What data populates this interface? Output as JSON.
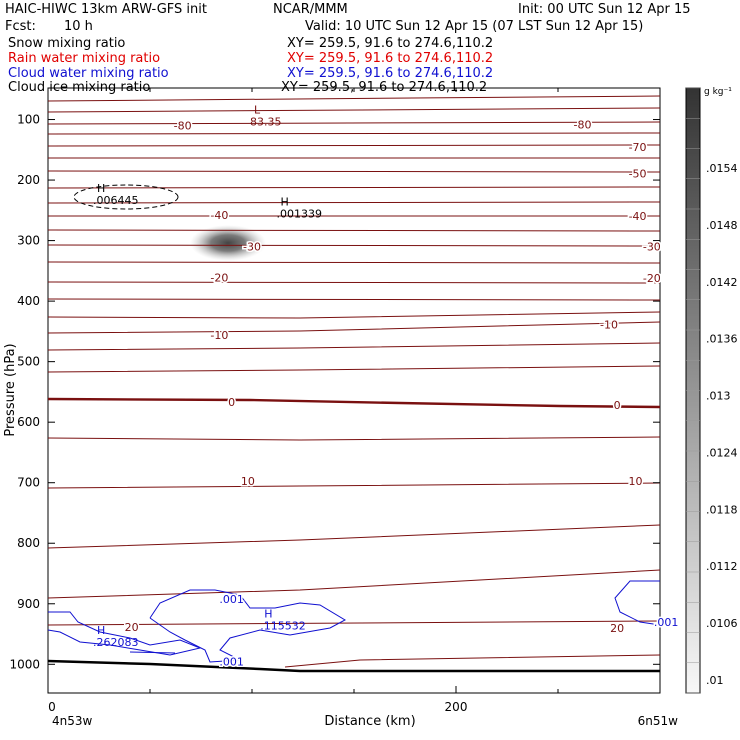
{
  "header": {
    "title_left": "HAIC-HIWC 13km ARW-GFS init",
    "title_mid": "NCAR/MMM",
    "init": "Init: 00 UTC Sun 12 Apr 15",
    "fcst_label": "Fcst:",
    "fcst_value": "10 h",
    "valid": "Valid: 10 UTC Sun 12 Apr 15 (07 LST Sun 12 Apr 15)"
  },
  "legend": [
    {
      "field": "Snow mixing ratio",
      "xy": "XY= 259.5, 91.6 to 274.6,110.2",
      "color": "#000000"
    },
    {
      "field": "Rain water mixing ratio",
      "xy": "XY= 259.5, 91.6 to 274.6,110.2",
      "color": "#e00000"
    },
    {
      "field": "Cloud water mixing ratio",
      "xy": "XY= 259.5, 91.6 to 274.6,110.2",
      "color": "#1010d0"
    },
    {
      "field": "Cloud ice mixing ratio",
      "xy": "XY= 259.5, 91.6 to 274.6,110.2",
      "color": "#000000"
    }
  ],
  "chart_data": {
    "type": "contour",
    "ylabel": "Pressure (hPa)",
    "xlabel": "Distance (km)",
    "x_ticks": [
      "0",
      "200"
    ],
    "y_ticks": [
      "100",
      "200",
      "300",
      "400",
      "500",
      "600",
      "700",
      "800",
      "900",
      "1000"
    ],
    "xlim": [
      0,
      300
    ],
    "ylim": [
      1050,
      50
    ],
    "x_end_labels": {
      "left": "4n53w",
      "right": "6n51w"
    },
    "colorbar": {
      "unit": "g kg⁻¹",
      "ticks": [
        ".0154",
        ".0148",
        ".0142",
        ".0136",
        ".013",
        ".0124",
        ".0118",
        ".0112",
        ".0106",
        ".01"
      ]
    },
    "temperature_contour_labels": [
      {
        "label": "-80",
        "x": 66,
        "p": 110
      },
      {
        "label": "-80",
        "x": 262,
        "p": 108
      },
      {
        "label": "-70",
        "x": 289,
        "p": 145
      },
      {
        "label": "-50",
        "x": 289,
        "p": 189
      },
      {
        "label": "-40",
        "x": 84,
        "p": 258
      },
      {
        "label": "-40",
        "x": 289,
        "p": 259
      },
      {
        "label": "-30",
        "x": 100,
        "p": 310
      },
      {
        "label": "-30",
        "x": 296,
        "p": 310
      },
      {
        "label": "-20",
        "x": 84,
        "p": 361
      },
      {
        "label": "-20",
        "x": 296,
        "p": 362
      },
      {
        "label": "-10",
        "x": 84,
        "p": 456
      },
      {
        "label": "-10",
        "x": 275,
        "p": 439
      },
      {
        "label": "0",
        "x": 90,
        "p": 567
      },
      {
        "label": "0",
        "x": 279,
        "p": 572
      },
      {
        "label": "10",
        "x": 98,
        "p": 697
      },
      {
        "label": "10",
        "x": 288,
        "p": 697
      },
      {
        "label": "20",
        "x": 41,
        "p": 938
      },
      {
        "label": "20",
        "x": 279,
        "p": 940
      }
    ],
    "extrema": [
      {
        "type": "L",
        "value": "83.35",
        "x": 101,
        "p": 100
      },
      {
        "type": "H",
        "value": ".006445",
        "x": 24,
        "p": 230
      },
      {
        "type": "H",
        "value": ".001339",
        "x": 114,
        "p": 252
      },
      {
        "type": "H",
        "value": ".262083",
        "x": 24,
        "p": 960
      },
      {
        "type": "H",
        "value": ".115532",
        "x": 106,
        "p": 933
      }
    ],
    "cloud_water_labels": [
      {
        "label": ".001",
        "x": 90,
        "p": 892
      },
      {
        "label": ".001",
        "x": 90,
        "p": 995
      },
      {
        "label": ".001",
        "x": 303,
        "p": 930
      }
    ],
    "shaded_max": {
      "x": 88,
      "p": 305
    }
  }
}
